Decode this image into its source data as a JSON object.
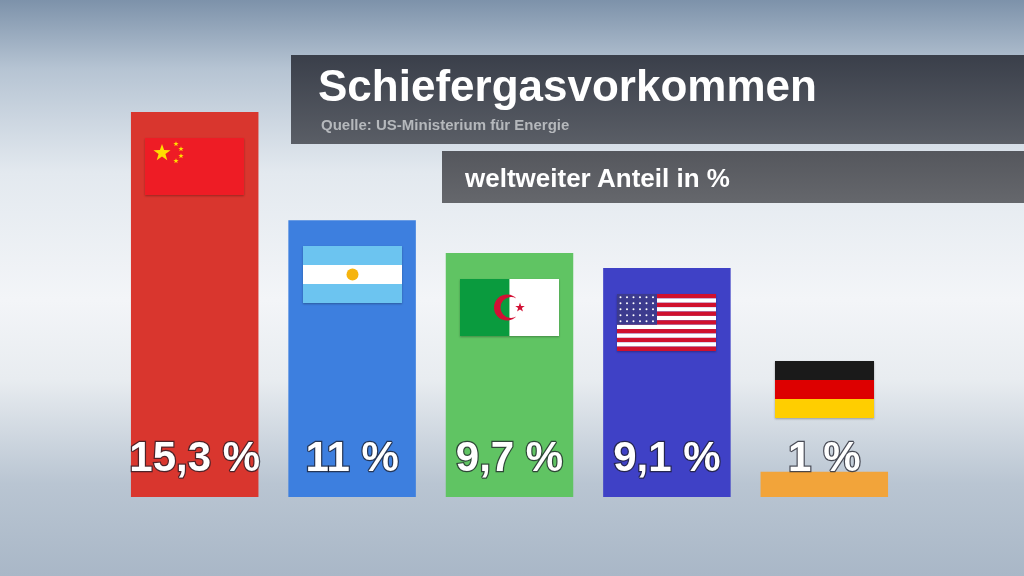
{
  "chart_data": {
    "type": "bar",
    "title": "Schiefergasvorkommen",
    "subtitle": "weltweiter Anteil in %",
    "annotations": [
      "Quelle: US-Ministerium für Energie"
    ],
    "categories": [
      null,
      null,
      null,
      null,
      null
    ],
    "values": [
      15.3,
      11,
      9.7,
      9.1,
      1
    ],
    "colors": [
      "#d9362e",
      "#3d7fdf",
      "#60c463",
      "#3f41c6",
      "#f2a43a"
    ],
    "value_labels": [
      "15,3 %",
      "11 %",
      "9,7 %",
      "9,1 %",
      "1 %"
    ],
    "tick_labels": false
  }
}
